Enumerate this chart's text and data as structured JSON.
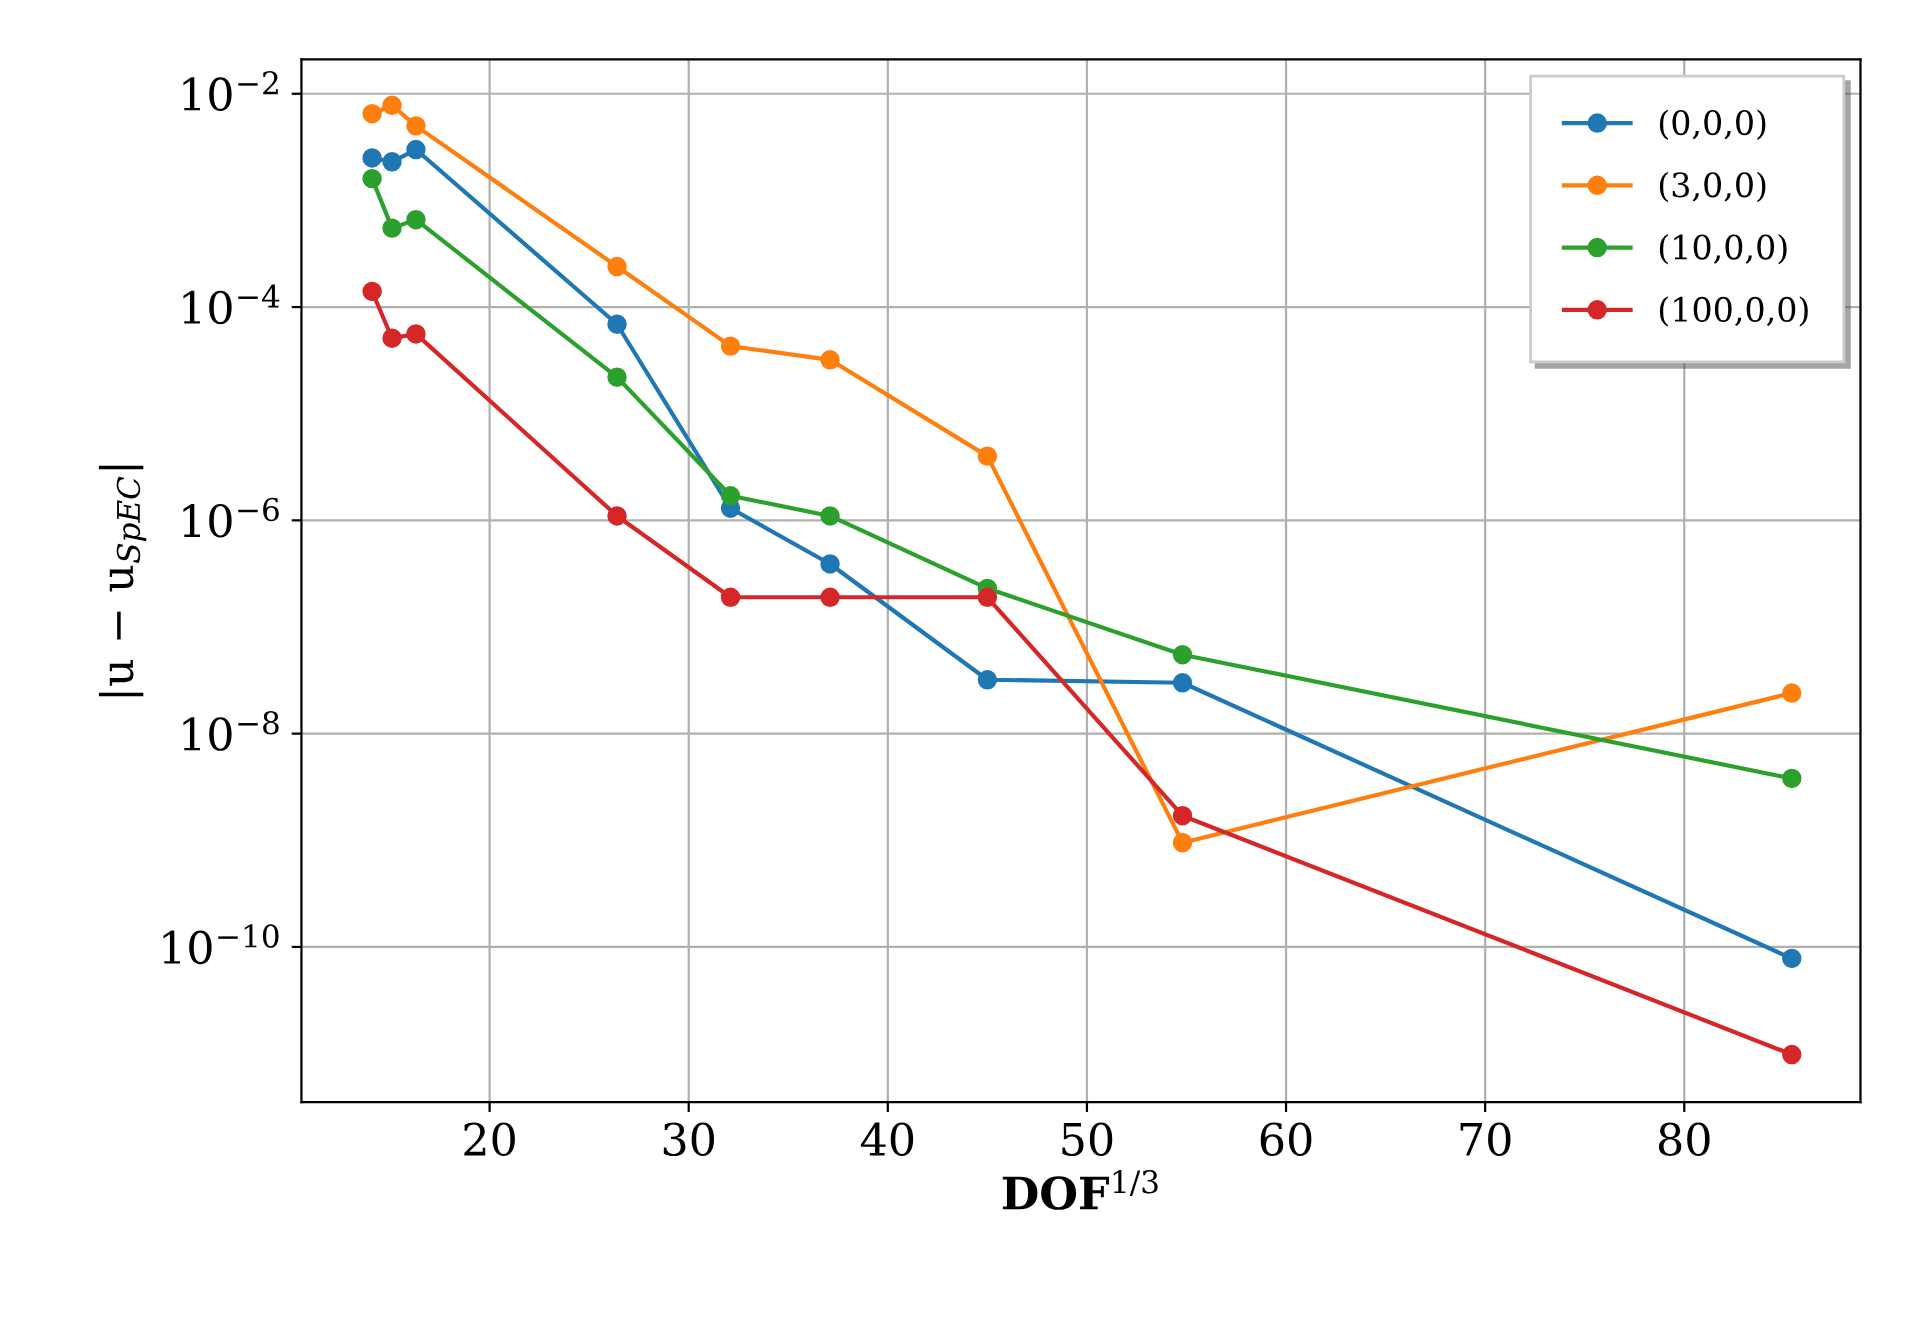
{
  "chart_data": {
    "type": "line",
    "xlabel": "DOF$^{1/3}$",
    "ylabel": "|u − u$_{SpEC}$|",
    "log": "y",
    "grid": true,
    "legend": "top right",
    "marker": "circle",
    "line_style": "solid",
    "xlim": [
      10.55,
      88.85
    ],
    "xticks": [
      20,
      30,
      40,
      50,
      60,
      70,
      80
    ],
    "ylim": [
      3.5e-12,
      0.021
    ],
    "yticks": [
      {
        "value": 0.01,
        "label": "10$^{−2}$"
      },
      {
        "value": 0.0001,
        "label": "10$^{−4}$"
      },
      {
        "value": 1e-06,
        "label": "10$^{−6}$"
      },
      {
        "value": 1e-08,
        "label": "10$^{−8}$"
      },
      {
        "value": 1e-10,
        "label": "10$^{−10}$"
      }
    ],
    "x": [
      14.1,
      15.1,
      16.3,
      26.4,
      32.1,
      37.1,
      45.0,
      54.8,
      85.4
    ],
    "series": [
      {
        "name": "(0,0,0)",
        "color": "#1f77b4",
        "values": [
          0.0025,
          0.0023,
          0.003,
          6.9e-05,
          1.3e-06,
          3.9e-07,
          3.2e-08,
          3e-08,
          7.8e-11
        ]
      },
      {
        "name": "(3,0,0)",
        "color": "#ff7f0e",
        "values": [
          0.0065,
          0.0078,
          0.005,
          0.00024,
          4.3e-05,
          3.2e-05,
          4e-06,
          9.5e-10,
          2.4e-08
        ]
      },
      {
        "name": "(10,0,0)",
        "color": "#2ca02c",
        "values": [
          0.0016,
          0.00055,
          0.00066,
          2.2e-05,
          1.7e-06,
          1.1e-06,
          2.3e-07,
          5.5e-08,
          3.8e-09
        ]
      },
      {
        "name": "(100,0,0)",
        "color": "#d62728",
        "values": [
          0.00014,
          5.1e-05,
          5.6e-05,
          1.1e-06,
          1.9e-07,
          1.9e-07,
          1.9e-07,
          1.7e-09,
          9.8e-12
        ]
      }
    ]
  }
}
